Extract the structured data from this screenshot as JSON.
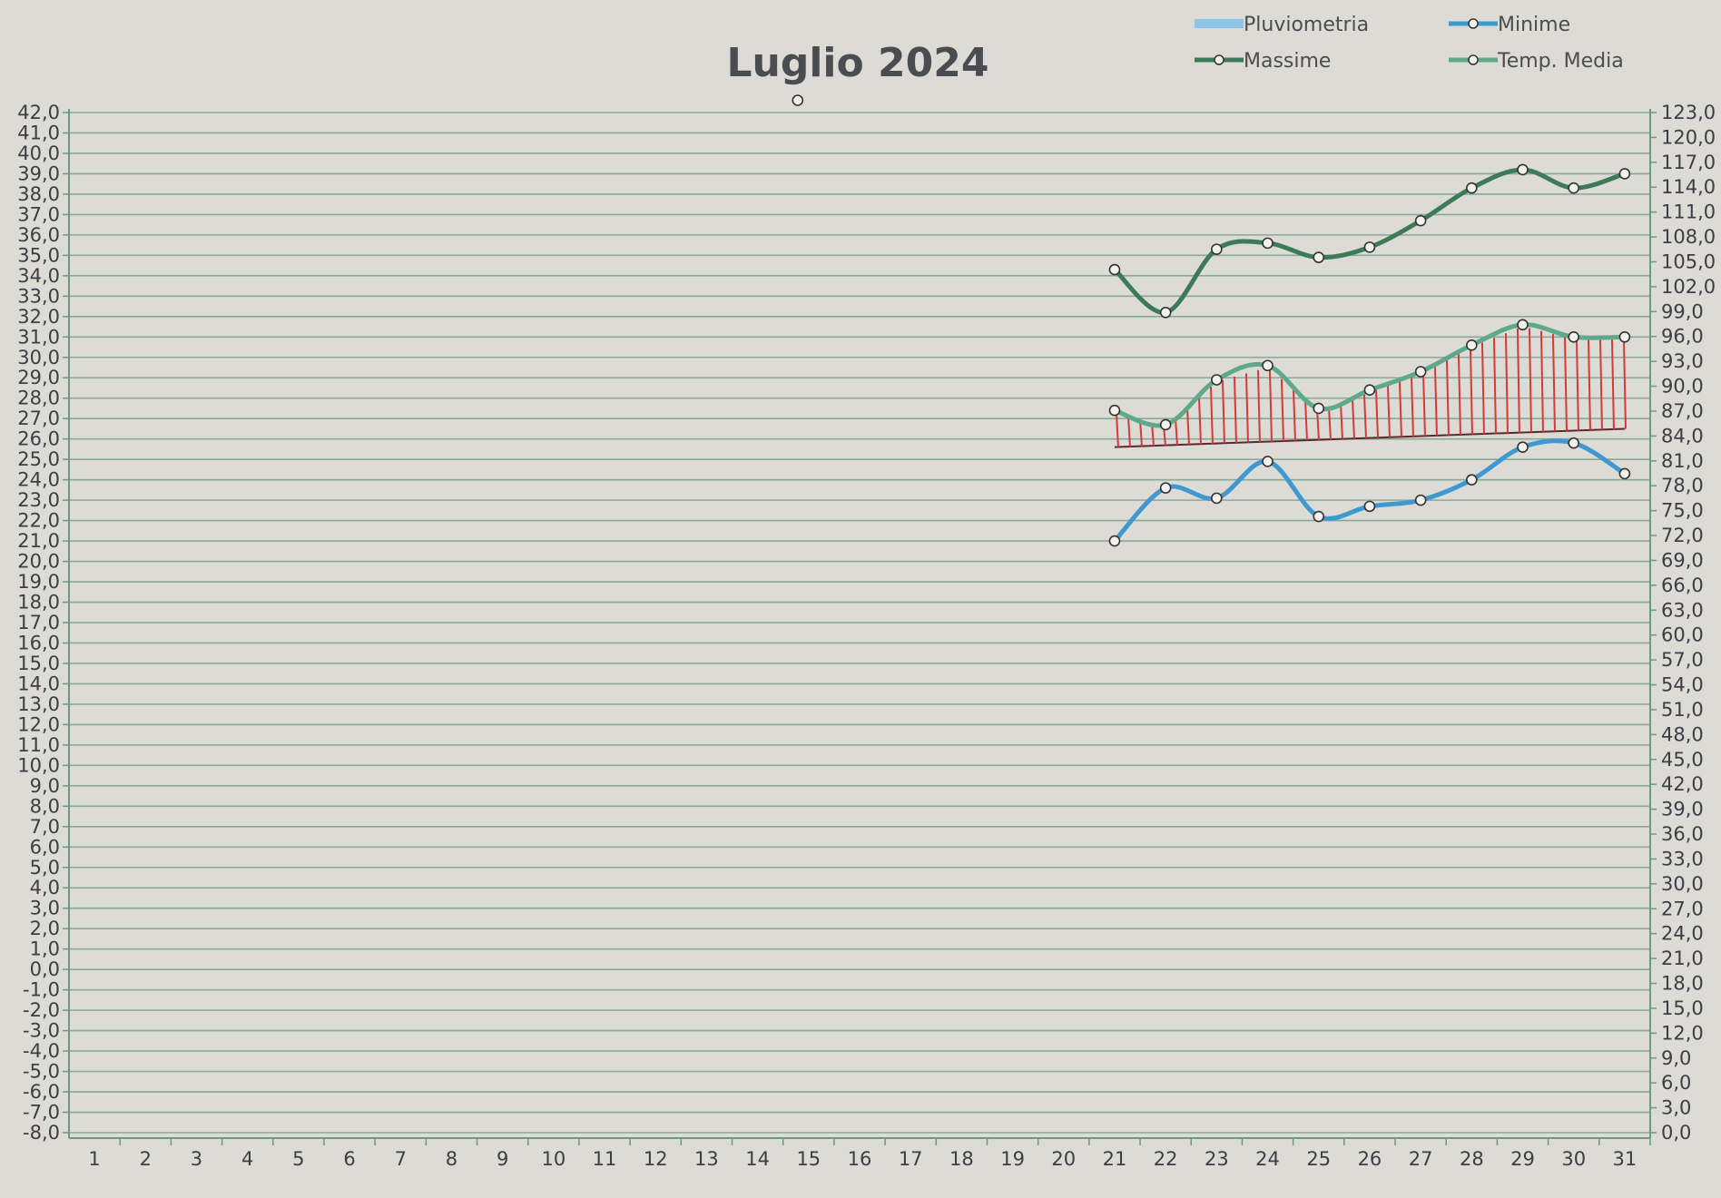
{
  "chart_data": {
    "type": "line",
    "title": "Luglio 2024",
    "categories": [
      "1",
      "2",
      "3",
      "4",
      "5",
      "6",
      "7",
      "8",
      "9",
      "10",
      "11",
      "12",
      "13",
      "14",
      "15",
      "16",
      "17",
      "18",
      "19",
      "20",
      "21",
      "22",
      "23",
      "24",
      "25",
      "26",
      "27",
      "28",
      "29",
      "30",
      "31"
    ],
    "y_left": {
      "ylim": [
        -8,
        42
      ],
      "step": 1,
      "ticks": [
        "42,0",
        "41,0",
        "40,0",
        "39,0",
        "38,0",
        "37,0",
        "36,0",
        "35,0",
        "34,0",
        "33,0",
        "32,0",
        "31,0",
        "30,0",
        "29,0",
        "28,0",
        "27,0",
        "26,0",
        "25,0",
        "24,0",
        "23,0",
        "22,0",
        "21,0",
        "20,0",
        "19,0",
        "18,0",
        "17,0",
        "16,0",
        "15,0",
        "14,0",
        "13,0",
        "12,0",
        "11,0",
        "10,0",
        "9,0",
        "8,0",
        "7,0",
        "6,0",
        "5,0",
        "4,0",
        "3,0",
        "2,0",
        "1,0",
        "0,0",
        "-1,0",
        "-2,0",
        "-3,0",
        "-4,0",
        "-5,0",
        "-6,0",
        "-7,0",
        "-8,0"
      ]
    },
    "y_right": {
      "ylim": [
        0,
        123
      ],
      "step": 3,
      "ticks": [
        "123,0",
        "120,0",
        "117,0",
        "114,0",
        "111,0",
        "108,0",
        "105,0",
        "102,0",
        "99,0",
        "96,0",
        "93,0",
        "90,0",
        "87,0",
        "84,0",
        "81,0",
        "78,0",
        "75,0",
        "72,0",
        "69,0",
        "66,0",
        "63,0",
        "60,0",
        "57,0",
        "54,0",
        "51,0",
        "48,0",
        "45,0",
        "42,0",
        "39,0",
        "36,0",
        "33,0",
        "30,0",
        "27,0",
        "24,0",
        "21,0",
        "18,0",
        "15,0",
        "12,0",
        "9,0",
        "6,0",
        "3,0",
        "0,0"
      ]
    },
    "legend": {
      "placement": "top-right",
      "items": [
        {
          "label": "Pluviometria",
          "color": "#8cc4e6",
          "marker": false
        },
        {
          "label": "Minime",
          "color": "#3f98cf",
          "marker": true
        },
        {
          "label": "Massime",
          "color": "#3d7a58",
          "marker": true
        },
        {
          "label": "Temp. Media",
          "color": "#5fa88a",
          "marker": true
        }
      ]
    },
    "series": [
      {
        "name": "Massime",
        "color": "#3d7a58",
        "axis": "left",
        "x": [
          21,
          22,
          23,
          24,
          25,
          26,
          27,
          28,
          29,
          30,
          31
        ],
        "values": [
          34.3,
          32.2,
          35.3,
          35.6,
          34.9,
          35.4,
          36.7,
          38.3,
          39.2,
          38.3,
          39.0
        ]
      },
      {
        "name": "Temp. Media",
        "color": "#5fa88a",
        "axis": "left",
        "x": [
          21,
          22,
          23,
          24,
          25,
          26,
          27,
          28,
          29,
          30,
          31
        ],
        "values": [
          27.4,
          26.7,
          28.9,
          29.6,
          27.5,
          28.4,
          29.3,
          30.6,
          31.6,
          31.0,
          31.0
        ]
      },
      {
        "name": "Minime",
        "color": "#3f98cf",
        "axis": "left",
        "x": [
          21,
          22,
          23,
          24,
          25,
          26,
          27,
          28,
          29,
          30,
          31
        ],
        "values": [
          21.0,
          23.6,
          23.1,
          24.9,
          22.2,
          22.7,
          23.0,
          24.0,
          25.6,
          25.8,
          24.3
        ]
      },
      {
        "name": "Pluviometria",
        "color": "#8cc4e6",
        "axis": "right",
        "x": [],
        "values": []
      }
    ],
    "stray_marker": {
      "x": 15,
      "y": 42.6
    },
    "hatch_color": "#d43a3a",
    "grid": true,
    "grid_color": "#8aa89a",
    "axis_color": "#6a9a86"
  }
}
